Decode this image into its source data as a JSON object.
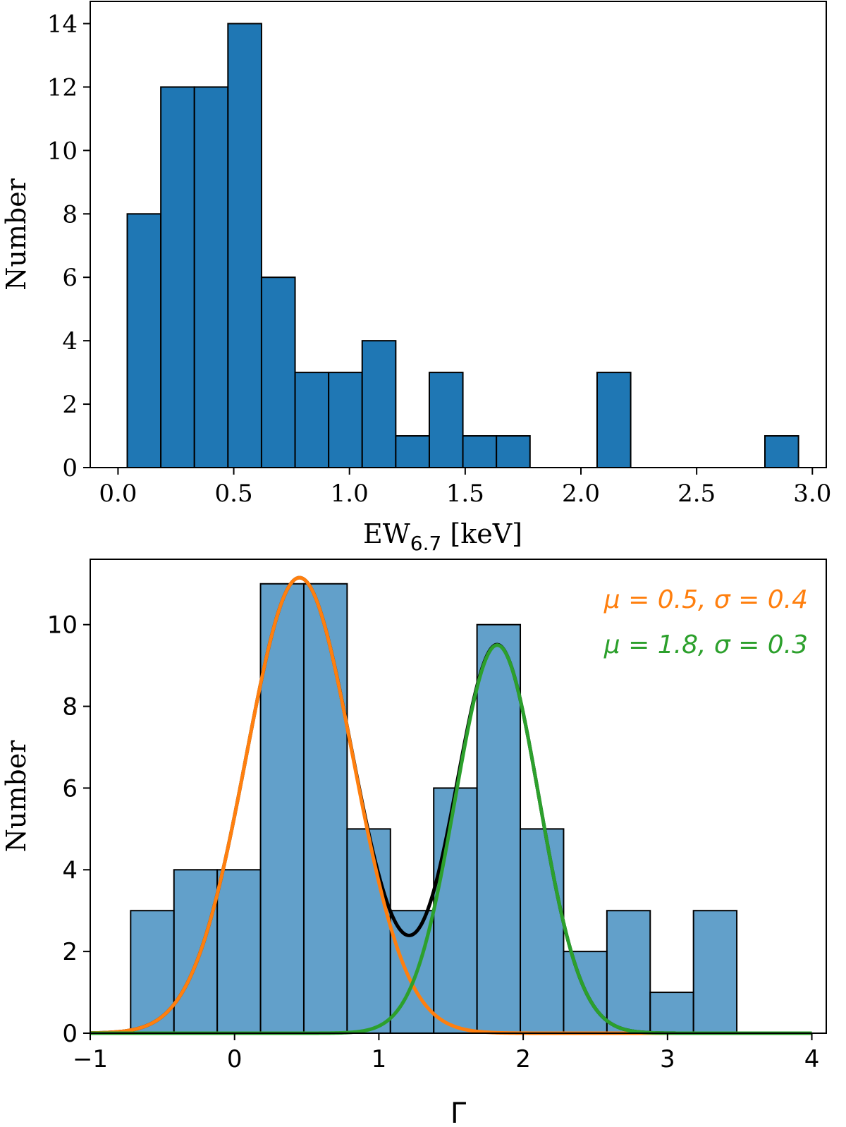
{
  "chart_data": [
    {
      "type": "histogram",
      "xlabel": "EW",
      "xlabel_sub": "6.7",
      "xlabel_unit": " [keV]",
      "ylabel": "Number",
      "xlim": [
        -0.12,
        3.06
      ],
      "ylim": [
        0,
        14.7
      ],
      "xticks": [
        0.0,
        0.5,
        1.0,
        1.5,
        2.0,
        2.5,
        3.0
      ],
      "xtick_labels": [
        "0.0",
        "0.5",
        "1.0",
        "1.5",
        "2.0",
        "2.5",
        "3.0"
      ],
      "yticks": [
        0,
        2,
        4,
        6,
        8,
        10,
        12,
        14
      ],
      "ytick_labels": [
        "0",
        "2",
        "4",
        "6",
        "8",
        "10",
        "12",
        "14"
      ],
      "bin_edges": [
        0.04,
        0.185,
        0.33,
        0.475,
        0.62,
        0.765,
        0.91,
        1.055,
        1.2,
        1.345,
        1.49,
        1.635,
        1.78,
        1.925,
        2.07,
        2.215,
        2.36,
        2.505,
        2.65,
        2.795,
        2.94
      ],
      "counts": [
        8,
        12,
        12,
        14,
        6,
        3,
        3,
        4,
        1,
        3,
        1,
        1,
        0,
        0,
        3,
        0,
        0,
        0,
        0,
        1
      ],
      "color": "#1f77b4"
    },
    {
      "type": "histogram",
      "xlabel": "Γ",
      "ylabel": "Number",
      "xlim": [
        -1.0,
        4.1
      ],
      "ylim": [
        0,
        11.6
      ],
      "xticks": [
        -1,
        0,
        1,
        2,
        3,
        4
      ],
      "xtick_labels": [
        "−1",
        "0",
        "1",
        "2",
        "3",
        "4"
      ],
      "yticks": [
        0,
        2,
        4,
        6,
        8,
        10
      ],
      "ytick_labels": [
        "0",
        "2",
        "4",
        "6",
        "8",
        "10"
      ],
      "bin_edges": [
        -0.72,
        -0.42,
        -0.12,
        0.18,
        0.48,
        0.78,
        1.08,
        1.38,
        1.68,
        1.98,
        2.28,
        2.58,
        2.88,
        3.18,
        3.48
      ],
      "counts": [
        3,
        4,
        4,
        11,
        11,
        5,
        3,
        6,
        10,
        5,
        2,
        3,
        1,
        3
      ],
      "color": "#1f77b4",
      "alpha": 0.7,
      "fits": [
        {
          "name": "gaussian-1",
          "mu": 0.45,
          "sigma": 0.37,
          "amplitude": 11.15,
          "color": "#ff7f0e",
          "label": "μ = 0.5, σ = 0.4"
        },
        {
          "name": "gaussian-2",
          "mu": 1.82,
          "sigma": 0.29,
          "amplitude": 9.5,
          "color": "#2ca02c",
          "label": "μ = 1.8, σ = 0.3"
        }
      ],
      "sum_color": "#000000",
      "legend_position": "top-right"
    }
  ]
}
